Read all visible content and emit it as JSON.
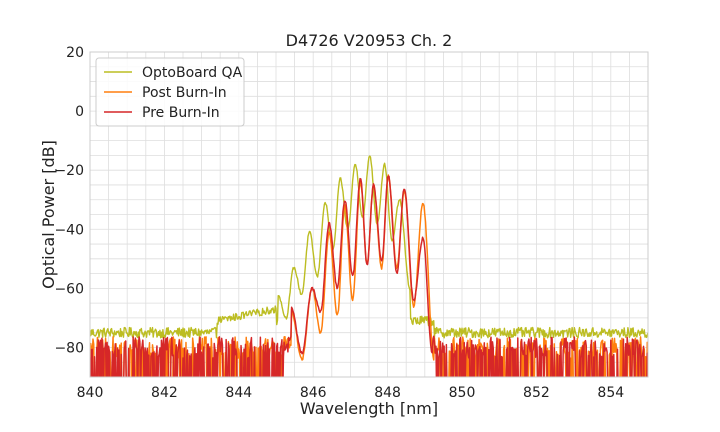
{
  "chart_data": {
    "type": "line",
    "title": "D4726 V20953 Ch. 2",
    "xlabel": "Wavelength [nm]",
    "ylabel": "Optical Power [dB]",
    "xlim": [
      840,
      855
    ],
    "ylim": [
      -90,
      20
    ],
    "xticks": [
      840,
      842,
      844,
      846,
      848,
      850,
      852,
      854
    ],
    "yticks": [
      20,
      0,
      -20,
      -40,
      -60,
      -80
    ],
    "xtick_labels": [
      "840",
      "842",
      "844",
      "846",
      "848",
      "850",
      "852",
      "854"
    ],
    "ytick_labels": [
      "20",
      "0",
      "−20",
      "−40",
      "−60",
      "−80"
    ],
    "grid": true,
    "legend_position": "top-left",
    "series": [
      {
        "name": "OptoBoard QA",
        "color": "#bcbd22",
        "noise_floor": -75,
        "noise_spread": 3.5,
        "envelope_start": 843.4,
        "envelope_end": 849.25,
        "peaks": [
          [
            845.05,
            -62
          ],
          [
            845.48,
            -53
          ],
          [
            845.9,
            -41
          ],
          [
            846.32,
            -31
          ],
          [
            846.73,
            -23
          ],
          [
            847.13,
            -18
          ],
          [
            847.52,
            -15
          ],
          [
            847.92,
            -18
          ],
          [
            848.32,
            -30
          ]
        ],
        "nulls": [
          [
            845.27,
            -70
          ],
          [
            845.69,
            -62
          ],
          [
            846.11,
            -56
          ],
          [
            846.53,
            -47
          ],
          [
            846.93,
            -40
          ],
          [
            847.33,
            -36
          ],
          [
            847.72,
            -38
          ],
          [
            848.12,
            -44
          ],
          [
            848.6,
            -60
          ]
        ]
      },
      {
        "name": "Post Burn-In",
        "color": "#ff7f0e",
        "noise_floor": -83,
        "noise_spread": 6,
        "envelope_start": 845.2,
        "envelope_end": 849.4,
        "peaks": [
          [
            845.4,
            -67
          ],
          [
            845.97,
            -60
          ],
          [
            846.43,
            -41
          ],
          [
            846.85,
            -32
          ],
          [
            847.27,
            -24
          ],
          [
            847.62,
            -25
          ],
          [
            848.02,
            -22
          ],
          [
            848.45,
            -27
          ],
          [
            848.95,
            -31
          ]
        ],
        "nulls": [
          [
            845.7,
            -84
          ],
          [
            846.2,
            -75
          ],
          [
            846.65,
            -69
          ],
          [
            847.06,
            -64
          ],
          [
            847.45,
            -52
          ],
          [
            847.84,
            -53
          ],
          [
            848.25,
            -53
          ],
          [
            848.7,
            -66
          ],
          [
            849.25,
            -84
          ]
        ]
      },
      {
        "name": "Pre Burn-In",
        "color": "#d62728",
        "noise_floor": -83,
        "noise_spread": 6,
        "envelope_start": 845.2,
        "envelope_end": 849.3,
        "peaks": [
          [
            845.4,
            -66
          ],
          [
            845.97,
            -60
          ],
          [
            846.43,
            -38
          ],
          [
            846.85,
            -30
          ],
          [
            847.27,
            -23
          ],
          [
            847.62,
            -25
          ],
          [
            848.02,
            -22
          ],
          [
            848.45,
            -26
          ],
          [
            848.95,
            -43
          ]
        ],
        "nulls": [
          [
            845.7,
            -82
          ],
          [
            846.2,
            -68
          ],
          [
            846.65,
            -60
          ],
          [
            847.06,
            -56
          ],
          [
            847.45,
            -52
          ],
          [
            847.84,
            -51
          ],
          [
            848.25,
            -55
          ],
          [
            848.7,
            -64
          ],
          [
            849.2,
            -82
          ]
        ]
      }
    ]
  }
}
